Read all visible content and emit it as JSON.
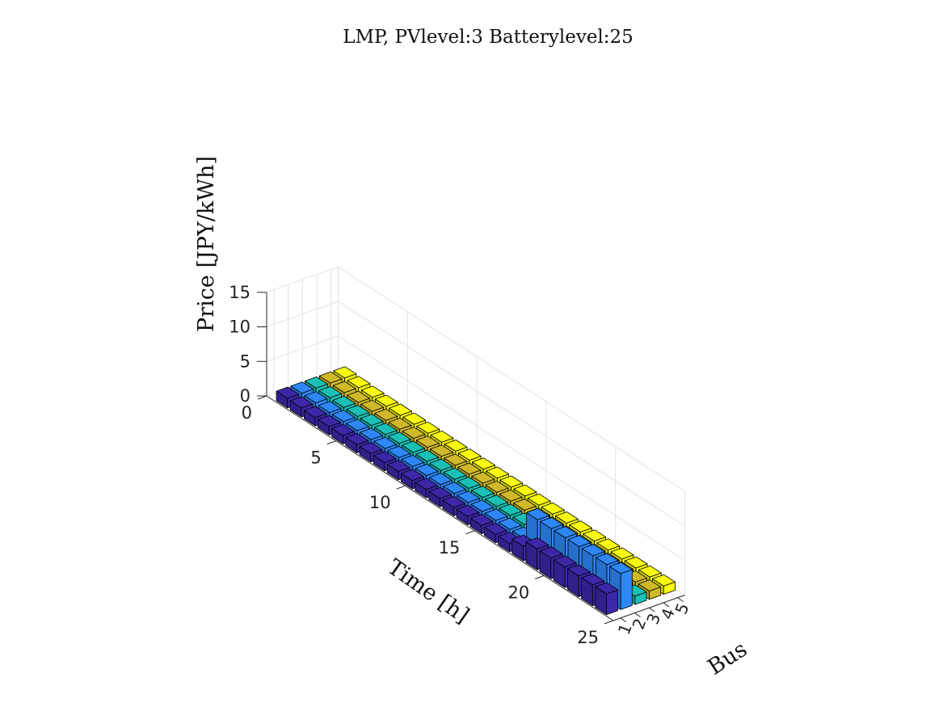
{
  "chart_data": {
    "type": "bar3",
    "title": "LMP, PVlevel:3 Batterylevel:25",
    "xlabel": "Time [h]",
    "ylabel": "Bus",
    "zlabel": "Price [JPY/kWh]",
    "time_ticks": [
      "0",
      "5",
      "10",
      "15",
      "20",
      "25"
    ],
    "bus_ticks": [
      "1",
      "2",
      "3",
      "4",
      "5"
    ],
    "price_ticks": [
      "0",
      "5",
      "10",
      "15"
    ],
    "xlim": [
      0,
      25
    ],
    "ylim": [
      0.5,
      5.5
    ],
    "zlim": [
      0,
      15
    ],
    "grid": true,
    "categories_time": [
      1,
      2,
      3,
      4,
      5,
      6,
      7,
      8,
      9,
      10,
      11,
      12,
      13,
      14,
      15,
      16,
      17,
      18,
      19,
      20,
      21,
      22,
      23,
      24
    ],
    "series": [
      {
        "bus": "1",
        "color": "#3e26a8",
        "values": [
          1.4,
          1.3,
          1.2,
          1.2,
          1.2,
          1.2,
          1.2,
          1.2,
          1.2,
          1.2,
          1.2,
          1.2,
          1.2,
          1.2,
          1.2,
          1.2,
          1.2,
          2.1,
          3.0,
          3.0,
          3.0,
          3.0,
          3.0,
          3.0
        ]
      },
      {
        "bus": "2",
        "color": "#2e87f7",
        "values": [
          1.4,
          1.3,
          1.2,
          1.2,
          1.2,
          1.2,
          1.2,
          1.2,
          1.2,
          1.2,
          1.2,
          1.2,
          1.2,
          1.2,
          1.2,
          1.2,
          1.2,
          5.2,
          5.2,
          5.2,
          5.2,
          5.2,
          5.2,
          5.2
        ]
      },
      {
        "bus": "3",
        "color": "#1ac0b5",
        "values": [
          1.4,
          1.3,
          1.2,
          1.2,
          1.2,
          1.2,
          1.2,
          1.2,
          1.2,
          1.2,
          1.2,
          1.2,
          1.2,
          1.2,
          1.2,
          1.2,
          1.2,
          1.2,
          1.2,
          1.2,
          1.2,
          1.2,
          1.2,
          1.2
        ]
      },
      {
        "bus": "4",
        "color": "#cfb928",
        "values": [
          1.4,
          1.3,
          1.2,
          1.2,
          1.2,
          1.2,
          1.2,
          1.2,
          1.2,
          1.2,
          1.2,
          1.2,
          1.2,
          1.2,
          1.2,
          1.2,
          1.2,
          1.2,
          1.2,
          1.2,
          1.2,
          1.2,
          1.2,
          1.2
        ]
      },
      {
        "bus": "5",
        "color": "#f9fb0e",
        "values": [
          1.4,
          1.3,
          1.2,
          1.2,
          1.2,
          1.2,
          1.2,
          1.2,
          1.2,
          1.2,
          1.2,
          1.2,
          1.2,
          1.2,
          1.2,
          1.2,
          1.2,
          1.2,
          1.2,
          1.2,
          1.2,
          1.2,
          1.2,
          1.2
        ]
      }
    ]
  }
}
